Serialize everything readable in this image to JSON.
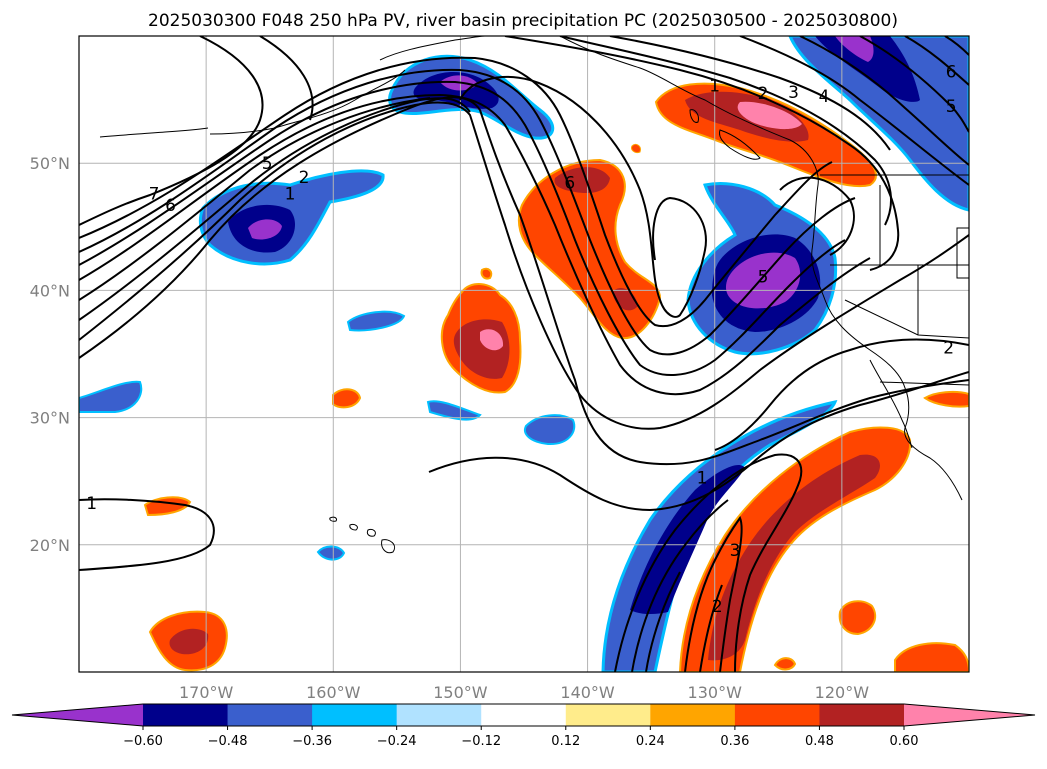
{
  "title": "2025030300 F048 250 hPa PV, river basin precipitation PC (2025030500 - 2025030800)",
  "map": {
    "lon_range": [
      -180,
      -110
    ],
    "lat_range": [
      10,
      60
    ],
    "lon_ticks": [
      {
        "value": -170,
        "label": "170°W"
      },
      {
        "value": -160,
        "label": "160°W"
      },
      {
        "value": -150,
        "label": "150°W"
      },
      {
        "value": -140,
        "label": "140°W"
      },
      {
        "value": -130,
        "label": "130°W"
      },
      {
        "value": -120,
        "label": "120°W"
      }
    ],
    "lat_ticks": [
      {
        "value": 20,
        "label": "20°N"
      },
      {
        "value": 30,
        "label": "30°N"
      },
      {
        "value": 40,
        "label": "40°N"
      },
      {
        "value": 50,
        "label": "50°N"
      }
    ],
    "gridlines": true,
    "contour_labels": [
      {
        "text": "1",
        "lon": -179.0,
        "lat": 23.3
      },
      {
        "text": "7",
        "lon": -174.1,
        "lat": 47.6
      },
      {
        "text": "6",
        "lon": -172.8,
        "lat": 46.7
      },
      {
        "text": "5",
        "lon": -165.2,
        "lat": 50.0
      },
      {
        "text": "2",
        "lon": -162.3,
        "lat": 48.9
      },
      {
        "text": "1",
        "lon": -163.4,
        "lat": 47.6
      },
      {
        "text": "6",
        "lon": -141.4,
        "lat": 48.5
      },
      {
        "text": "1",
        "lon": -130.0,
        "lat": 56.1
      },
      {
        "text": "2",
        "lon": -126.2,
        "lat": 55.5
      },
      {
        "text": "3",
        "lon": -123.8,
        "lat": 55.6
      },
      {
        "text": "4",
        "lon": -121.4,
        "lat": 55.3
      },
      {
        "text": "6",
        "lon": -111.4,
        "lat": 57.2
      },
      {
        "text": "5",
        "lon": -111.4,
        "lat": 54.5
      },
      {
        "text": "5",
        "lon": -126.2,
        "lat": 41.1
      },
      {
        "text": "2",
        "lon": -111.6,
        "lat": 35.5
      },
      {
        "text": "1",
        "lon": -131.0,
        "lat": 25.3
      },
      {
        "text": "3",
        "lon": -128.4,
        "lat": 19.6
      },
      {
        "text": "2",
        "lon": -129.8,
        "lat": 15.2
      }
    ]
  },
  "colorbar": {
    "colors": [
      "#9932cc",
      "#00008b",
      "#3a5fcd",
      "#00bfff",
      "#b0e2ff",
      "#ffffff",
      "#ffec8b",
      "#ffa500",
      "#ff4500",
      "#b22222",
      "#ff82ab"
    ],
    "tick_labels": [
      "−0.60",
      "−0.48",
      "−0.36",
      "−0.24",
      "−0.12",
      "0.12",
      "0.24",
      "0.36",
      "0.48",
      "0.60"
    ],
    "extend": "both"
  },
  "colors": {
    "contour": "#000000",
    "grid": "#b4b4b4",
    "coast": "#000000"
  }
}
